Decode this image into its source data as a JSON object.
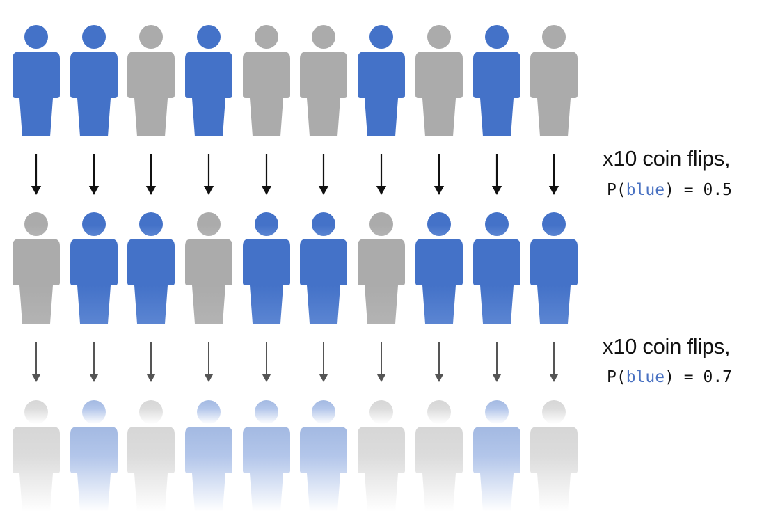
{
  "colors": {
    "blue": "#4472c8",
    "gray": "#ababab",
    "faded_blue": "#a3b9e2",
    "faded_gray": "#d6d6d6",
    "arrow_dark": "#111111",
    "arrow_mid": "#555555"
  },
  "rows": [
    {
      "people": [
        "blue",
        "blue",
        "gray",
        "blue",
        "gray",
        "gray",
        "blue",
        "gray",
        "blue",
        "gray"
      ],
      "style": "solid"
    },
    {
      "people": [
        "gray",
        "blue",
        "blue",
        "gray",
        "blue",
        "blue",
        "gray",
        "blue",
        "blue",
        "blue"
      ],
      "style": "solid-fade"
    },
    {
      "people": [
        "gray",
        "blue",
        "gray",
        "blue",
        "blue",
        "blue",
        "gray",
        "gray",
        "blue",
        "gray"
      ],
      "style": "faded"
    }
  ],
  "transitions": [
    {
      "line1": "x10 coin flips,",
      "func": "P(",
      "keyword": "blue",
      "rest": ") = 0.5"
    },
    {
      "line1": "x10 coin flips,",
      "func": "P(",
      "keyword": "blue",
      "rest": ") = 0.7"
    }
  ],
  "icons": [
    "person-icon",
    "down-arrow-icon"
  ]
}
